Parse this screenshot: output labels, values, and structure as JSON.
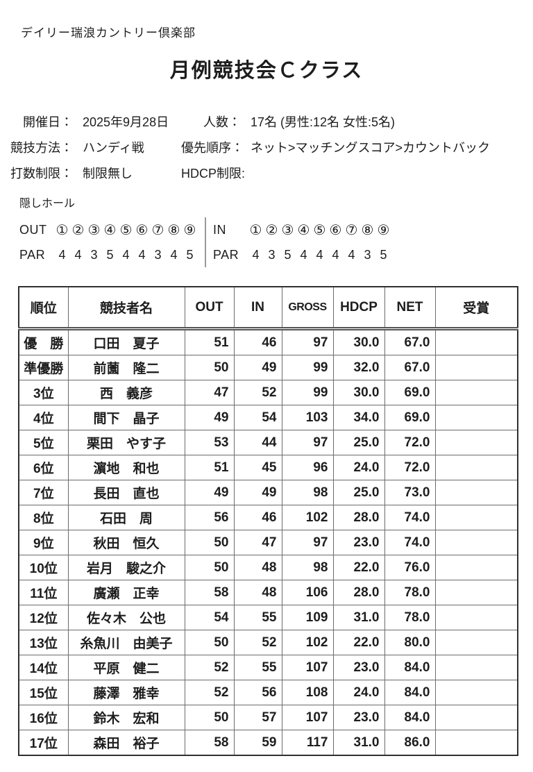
{
  "page": {
    "club_name": "デイリー瑞浪カントリー倶楽部",
    "title": "月例競技会Ｃクラス"
  },
  "meta": {
    "row1": {
      "label1": "開催日：",
      "value1": "2025年9月28日",
      "label2": "人数：",
      "value2": "17名 (男性:12名 女性:5名)"
    },
    "row2": {
      "label1": "競技方法：",
      "value1": "ハンディ戦",
      "label2": "優先順序：",
      "value2": "ネット>マッチングスコア>カウントバック"
    },
    "row3": {
      "label1": "打数制限：",
      "value1": "制限無し",
      "label2": "HDCP制限:",
      "value2": ""
    }
  },
  "hidden_holes": {
    "section_title": "隠しホール",
    "out_label": "OUT",
    "in_label": "IN",
    "par_label": "PAR",
    "out_holes": [
      "①",
      "②",
      "③",
      "④",
      "⑤",
      "⑥",
      "⑦",
      "⑧",
      "⑨"
    ],
    "out_par": [
      "4",
      "4",
      "3",
      "5",
      "4",
      "4",
      "3",
      "4",
      "5"
    ],
    "in_holes": [
      "①",
      "②",
      "③",
      "④",
      "⑤",
      "⑥",
      "⑦",
      "⑧",
      "⑨"
    ],
    "in_par": [
      "4",
      "3",
      "5",
      "4",
      "4",
      "4",
      "4",
      "3",
      "5"
    ]
  },
  "table": {
    "columns": [
      "順位",
      "競技者名",
      "OUT",
      "IN",
      "GROSS",
      "HDCP",
      "NET",
      "受賞"
    ],
    "rows": [
      {
        "rank": "優　勝",
        "name": "口田　夏子",
        "out": "51",
        "in": "46",
        "gross": "97",
        "hdcp": "30.0",
        "net": "67.0",
        "prize": ""
      },
      {
        "rank": "準優勝",
        "name": "前薗　隆二",
        "out": "50",
        "in": "49",
        "gross": "99",
        "hdcp": "32.0",
        "net": "67.0",
        "prize": ""
      },
      {
        "rank": "3位",
        "name": "西　義彦",
        "out": "47",
        "in": "52",
        "gross": "99",
        "hdcp": "30.0",
        "net": "69.0",
        "prize": ""
      },
      {
        "rank": "4位",
        "name": "間下　晶子",
        "out": "49",
        "in": "54",
        "gross": "103",
        "hdcp": "34.0",
        "net": "69.0",
        "prize": ""
      },
      {
        "rank": "5位",
        "name": "栗田　やす子",
        "out": "53",
        "in": "44",
        "gross": "97",
        "hdcp": "25.0",
        "net": "72.0",
        "prize": ""
      },
      {
        "rank": "6位",
        "name": "濵地　和也",
        "out": "51",
        "in": "45",
        "gross": "96",
        "hdcp": "24.0",
        "net": "72.0",
        "prize": ""
      },
      {
        "rank": "7位",
        "name": "長田　直也",
        "out": "49",
        "in": "49",
        "gross": "98",
        "hdcp": "25.0",
        "net": "73.0",
        "prize": ""
      },
      {
        "rank": "8位",
        "name": "石田　周",
        "out": "56",
        "in": "46",
        "gross": "102",
        "hdcp": "28.0",
        "net": "74.0",
        "prize": ""
      },
      {
        "rank": "9位",
        "name": "秋田　恒久",
        "out": "50",
        "in": "47",
        "gross": "97",
        "hdcp": "23.0",
        "net": "74.0",
        "prize": ""
      },
      {
        "rank": "10位",
        "name": "岩月　駿之介",
        "out": "50",
        "in": "48",
        "gross": "98",
        "hdcp": "22.0",
        "net": "76.0",
        "prize": ""
      },
      {
        "rank": "11位",
        "name": "廣瀬　正幸",
        "out": "58",
        "in": "48",
        "gross": "106",
        "hdcp": "28.0",
        "net": "78.0",
        "prize": ""
      },
      {
        "rank": "12位",
        "name": "佐々木　公也",
        "out": "54",
        "in": "55",
        "gross": "109",
        "hdcp": "31.0",
        "net": "78.0",
        "prize": ""
      },
      {
        "rank": "13位",
        "name": "糸魚川　由美子",
        "out": "50",
        "in": "52",
        "gross": "102",
        "hdcp": "22.0",
        "net": "80.0",
        "prize": ""
      },
      {
        "rank": "14位",
        "name": "平原　健二",
        "out": "52",
        "in": "55",
        "gross": "107",
        "hdcp": "23.0",
        "net": "84.0",
        "prize": ""
      },
      {
        "rank": "15位",
        "name": "藤澤　雅幸",
        "out": "52",
        "in": "56",
        "gross": "108",
        "hdcp": "24.0",
        "net": "84.0",
        "prize": ""
      },
      {
        "rank": "16位",
        "name": "鈴木　宏和",
        "out": "50",
        "in": "57",
        "gross": "107",
        "hdcp": "23.0",
        "net": "84.0",
        "prize": ""
      },
      {
        "rank": "17位",
        "name": "森田　裕子",
        "out": "58",
        "in": "59",
        "gross": "117",
        "hdcp": "31.0",
        "net": "86.0",
        "prize": ""
      }
    ]
  }
}
